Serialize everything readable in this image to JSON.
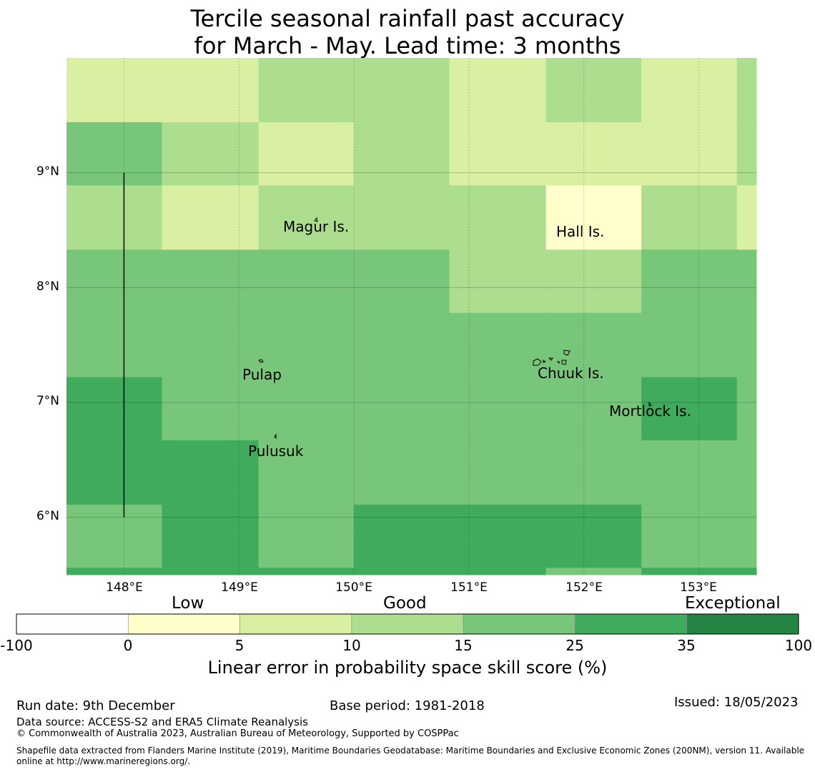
{
  "title_line1": "Tercile seasonal rainfall past accuracy",
  "title_line2": "for March - May. Lead time: 3 months",
  "map": {
    "lon_range": [
      147.5,
      153.5
    ],
    "lat_range": [
      5.5,
      10.0
    ],
    "x_ticks": [
      "148°E",
      "149°E",
      "150°E",
      "151°E",
      "152°E",
      "153°E"
    ],
    "y_ticks": [
      "9°N",
      "8°N",
      "7°N",
      "6°N"
    ],
    "grid_columns_lon": [
      147.5,
      148.33,
      149.17,
      150.0,
      150.83,
      151.67,
      152.5,
      153.33,
      153.5
    ],
    "grid_rows_lat": [
      10.0,
      9.44,
      8.89,
      8.33,
      7.78,
      7.22,
      6.67,
      6.11,
      5.56,
      5.5
    ],
    "skill_grid": [
      [
        5,
        5,
        10,
        10,
        5,
        10,
        5,
        10
      ],
      [
        15,
        10,
        5,
        10,
        5,
        5,
        5,
        10
      ],
      [
        10,
        5,
        10,
        10,
        10,
        0,
        10,
        5
      ],
      [
        15,
        15,
        15,
        15,
        10,
        10,
        15,
        15
      ],
      [
        15,
        15,
        15,
        15,
        15,
        15,
        15,
        15
      ],
      [
        25,
        15,
        15,
        15,
        15,
        15,
        25,
        15
      ],
      [
        25,
        25,
        15,
        15,
        15,
        15,
        15,
        15
      ],
      [
        15,
        25,
        15,
        25,
        25,
        25,
        15,
        15
      ],
      [
        25,
        25,
        25,
        25,
        25,
        15,
        25,
        25
      ]
    ],
    "places": [
      {
        "name": "Magur Is.",
        "lon": 149.7,
        "lat": 8.56
      },
      {
        "name": "Hall Is.",
        "lon": 151.97,
        "lat": 8.52
      },
      {
        "name": "Pulap",
        "lon": 149.2,
        "lat": 7.27
      },
      {
        "name": "Chuuk Is.",
        "lon": 151.85,
        "lat": 7.38
      },
      {
        "name": "Mortlock Is.",
        "lon": 152.6,
        "lat": 6.95
      },
      {
        "name": "Pulusuk",
        "lon": 149.32,
        "lat": 6.63
      }
    ],
    "boundary_line_lon": 148.0
  },
  "colorbar": {
    "categories": [
      "Low",
      "Good",
      "Exceptional"
    ],
    "ticks": [
      "-100",
      "0",
      "5",
      "10",
      "15",
      "25",
      "35",
      "100"
    ],
    "colors": [
      "#ffffff",
      "#ffffcc",
      "#d9f0a3",
      "#addd8e",
      "#78c679",
      "#41ab5d",
      "#238443"
    ],
    "label": "Linear error in probability space skill score (%)"
  },
  "footer": {
    "run_date": "Run date: 9th December",
    "base_period": "Base period: 1981-2018",
    "issued": "Issued: 18/05/2023",
    "data_source": "Data source: ACCESS-S2 and ERA5 Climate Reanalysis",
    "copyright": "© Commonwealth of Australia 2023, Australian Bureau of Meteorology, Supported by COSPPac",
    "shapefile_1": "Shapefile data extracted from Flanders Marine Institute (2019), Maritime Boundaries Geodatabase: Maritime Boundaries and Exclusive Economic Zones (200NM), version 11. Available",
    "shapefile_2": "online at http://www.marineregions.org/."
  }
}
